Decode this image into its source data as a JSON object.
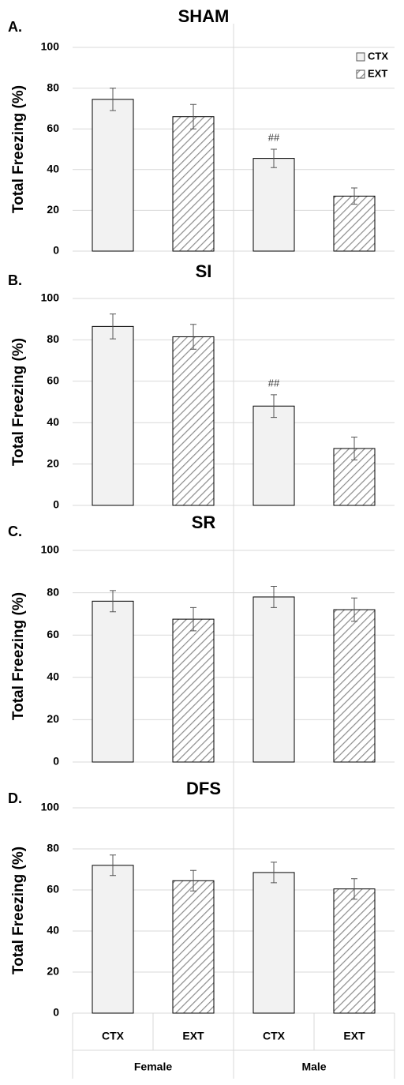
{
  "chart_data": [
    {
      "type": "bar",
      "panel": "A.",
      "title": "SHAM",
      "y_label": "Total Freezing (%)",
      "ylim": [
        0,
        100
      ],
      "yticks": [
        0,
        20,
        40,
        60,
        80,
        100
      ],
      "grid": true,
      "legend": "upper right",
      "series": [
        {
          "name": "CTX",
          "color": "#f2f2f2",
          "values": [
            74.5,
            45.5
          ],
          "errors": [
            5.5,
            4.5
          ],
          "annotations": [
            null,
            "##"
          ]
        },
        {
          "name": "EXT",
          "color": "#7f7f7f",
          "values": [
            66,
            27
          ],
          "errors": [
            6,
            4
          ]
        }
      ]
    },
    {
      "type": "bar",
      "panel": "B.",
      "title": "SI",
      "y_label": "Total Freezing (%)",
      "ylim": [
        0,
        100
      ],
      "yticks": [
        0,
        20,
        40,
        60,
        80,
        100
      ],
      "grid": true,
      "series": [
        {
          "name": "CTX",
          "color": "#f2f2f2",
          "values": [
            86.5,
            48
          ],
          "errors": [
            6,
            5.5
          ],
          "annotations": [
            null,
            "##"
          ]
        },
        {
          "name": "EXT",
          "color": "#7f7f7f",
          "values": [
            81.5,
            27.5
          ],
          "errors": [
            6,
            5.5
          ]
        }
      ]
    },
    {
      "type": "bar",
      "panel": "C.",
      "title": "SR",
      "y_label": "Total Freezing (%)",
      "ylim": [
        0,
        100
      ],
      "yticks": [
        0,
        20,
        40,
        60,
        80,
        100
      ],
      "grid": true,
      "series": [
        {
          "name": "CTX",
          "color": "#f2f2f2",
          "values": [
            76,
            78
          ],
          "errors": [
            5,
            5
          ]
        },
        {
          "name": "EXT",
          "color": "#7f7f7f",
          "values": [
            67.5,
            72
          ],
          "errors": [
            5.5,
            5.5
          ]
        }
      ]
    },
    {
      "type": "bar",
      "panel": "D.",
      "title": "DFS",
      "y_label": "Total Freezing (%)",
      "ylim": [
        0,
        100
      ],
      "yticks": [
        0,
        20,
        40,
        60,
        80,
        100
      ],
      "grid": true,
      "categories": [
        "Female",
        "Male"
      ],
      "series": [
        {
          "name": "CTX",
          "color": "#f2f2f2",
          "values": [
            72,
            68.5
          ],
          "errors": [
            5,
            5
          ]
        },
        {
          "name": "EXT",
          "color": "#7f7f7f",
          "values": [
            64.5,
            60.5
          ],
          "errors": [
            5,
            5
          ]
        }
      ]
    }
  ]
}
